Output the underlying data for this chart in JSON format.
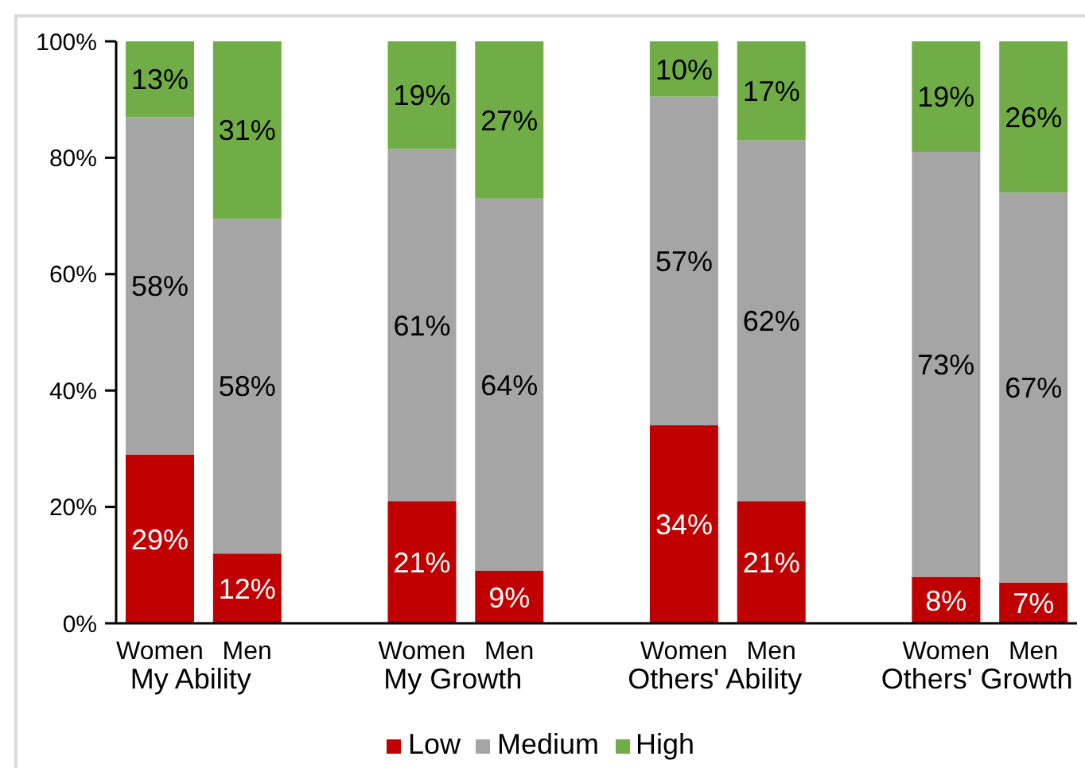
{
  "chart_data": {
    "type": "bar",
    "stacked": true,
    "categories": [
      "Women",
      "Men",
      null,
      "Women",
      "Men",
      null,
      "Women",
      "Men",
      null,
      "Women",
      "Men"
    ],
    "series": [
      {
        "name": "Low",
        "color": "#c00000",
        "values": [
          29,
          12,
          null,
          21,
          9,
          null,
          34,
          21,
          null,
          8,
          7
        ],
        "value_labels": [
          "29%",
          "12%",
          null,
          "21%",
          "9%",
          null,
          "34%",
          "21%",
          null,
          "8%",
          "7%"
        ]
      },
      {
        "name": "Medium",
        "color": "#a5a5a5",
        "values": [
          58,
          57.5,
          null,
          60.5,
          64,
          null,
          56.5,
          62,
          null,
          73,
          67
        ],
        "value_labels": [
          "58%",
          "58%",
          null,
          "61%",
          "64%",
          null,
          "57%",
          "62%",
          null,
          "73%",
          "67%"
        ]
      },
      {
        "name": "High",
        "color": "#70ad47",
        "values": [
          13,
          30.5,
          null,
          18.5,
          27,
          null,
          9.5,
          17,
          null,
          19,
          26
        ],
        "value_labels": [
          "13%",
          "31%",
          null,
          "19%",
          "27%",
          null,
          "10%",
          "17%",
          null,
          "19%",
          "26%"
        ]
      }
    ],
    "ylim": [
      0,
      100
    ],
    "yticks": [
      {
        "value": 0,
        "label": "0%"
      },
      {
        "value": 20,
        "label": "20%"
      },
      {
        "value": 40,
        "label": "40%"
      },
      {
        "value": 60,
        "label": "60%"
      },
      {
        "value": 80,
        "label": "80%"
      },
      {
        "value": 100,
        "label": "100%"
      }
    ],
    "annotations": [
      "My Ability",
      "My Growth",
      "Others' Ability",
      "Others' Growth"
    ],
    "legend": "bottom"
  }
}
